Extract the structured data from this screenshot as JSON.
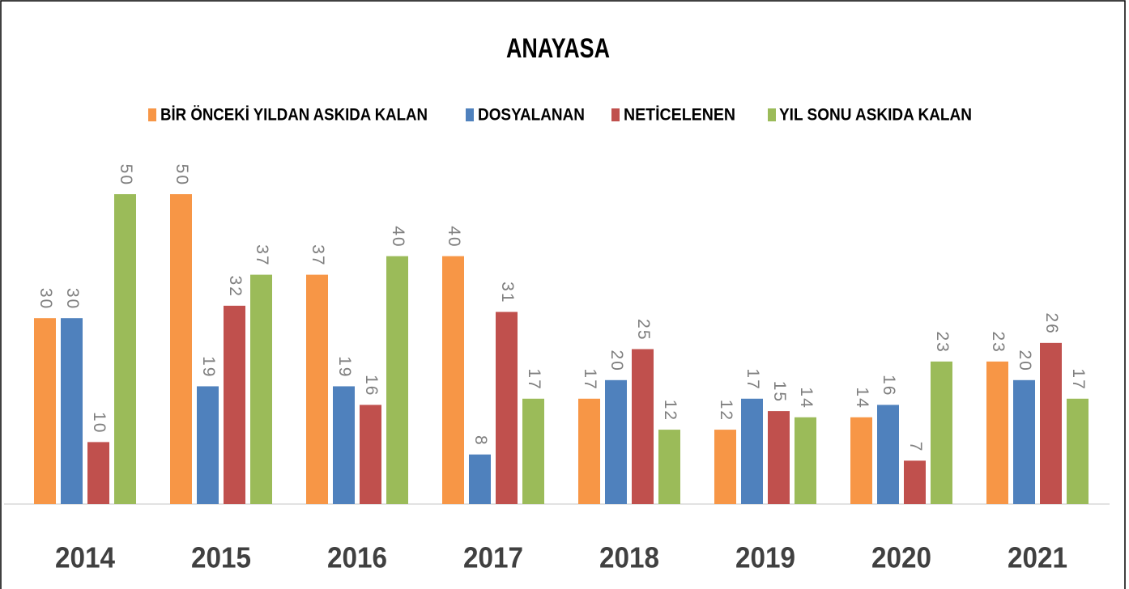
{
  "chart_data": {
    "type": "bar",
    "title": "ANAYASA",
    "categories": [
      "2014",
      "2015",
      "2016",
      "2017",
      "2018",
      "2019",
      "2020",
      "2021"
    ],
    "series": [
      {
        "name": "BİR ÖNCEKİ YILDAN ASKIDA KALAN",
        "color": "#f79646",
        "values": [
          30,
          50,
          37,
          40,
          17,
          12,
          14,
          23
        ]
      },
      {
        "name": "DOSYALANAN",
        "color": "#4f81bd",
        "values": [
          30,
          19,
          19,
          8,
          20,
          17,
          16,
          20
        ]
      },
      {
        "name": "NETİCELENEN",
        "color": "#c0504d",
        "values": [
          10,
          32,
          16,
          31,
          25,
          15,
          7,
          26
        ]
      },
      {
        "name": "YIL SONU ASKIDA KALAN",
        "color": "#9bbb59",
        "values": [
          50,
          37,
          40,
          17,
          12,
          14,
          23,
          17
        ]
      }
    ],
    "legend": "top"
  }
}
